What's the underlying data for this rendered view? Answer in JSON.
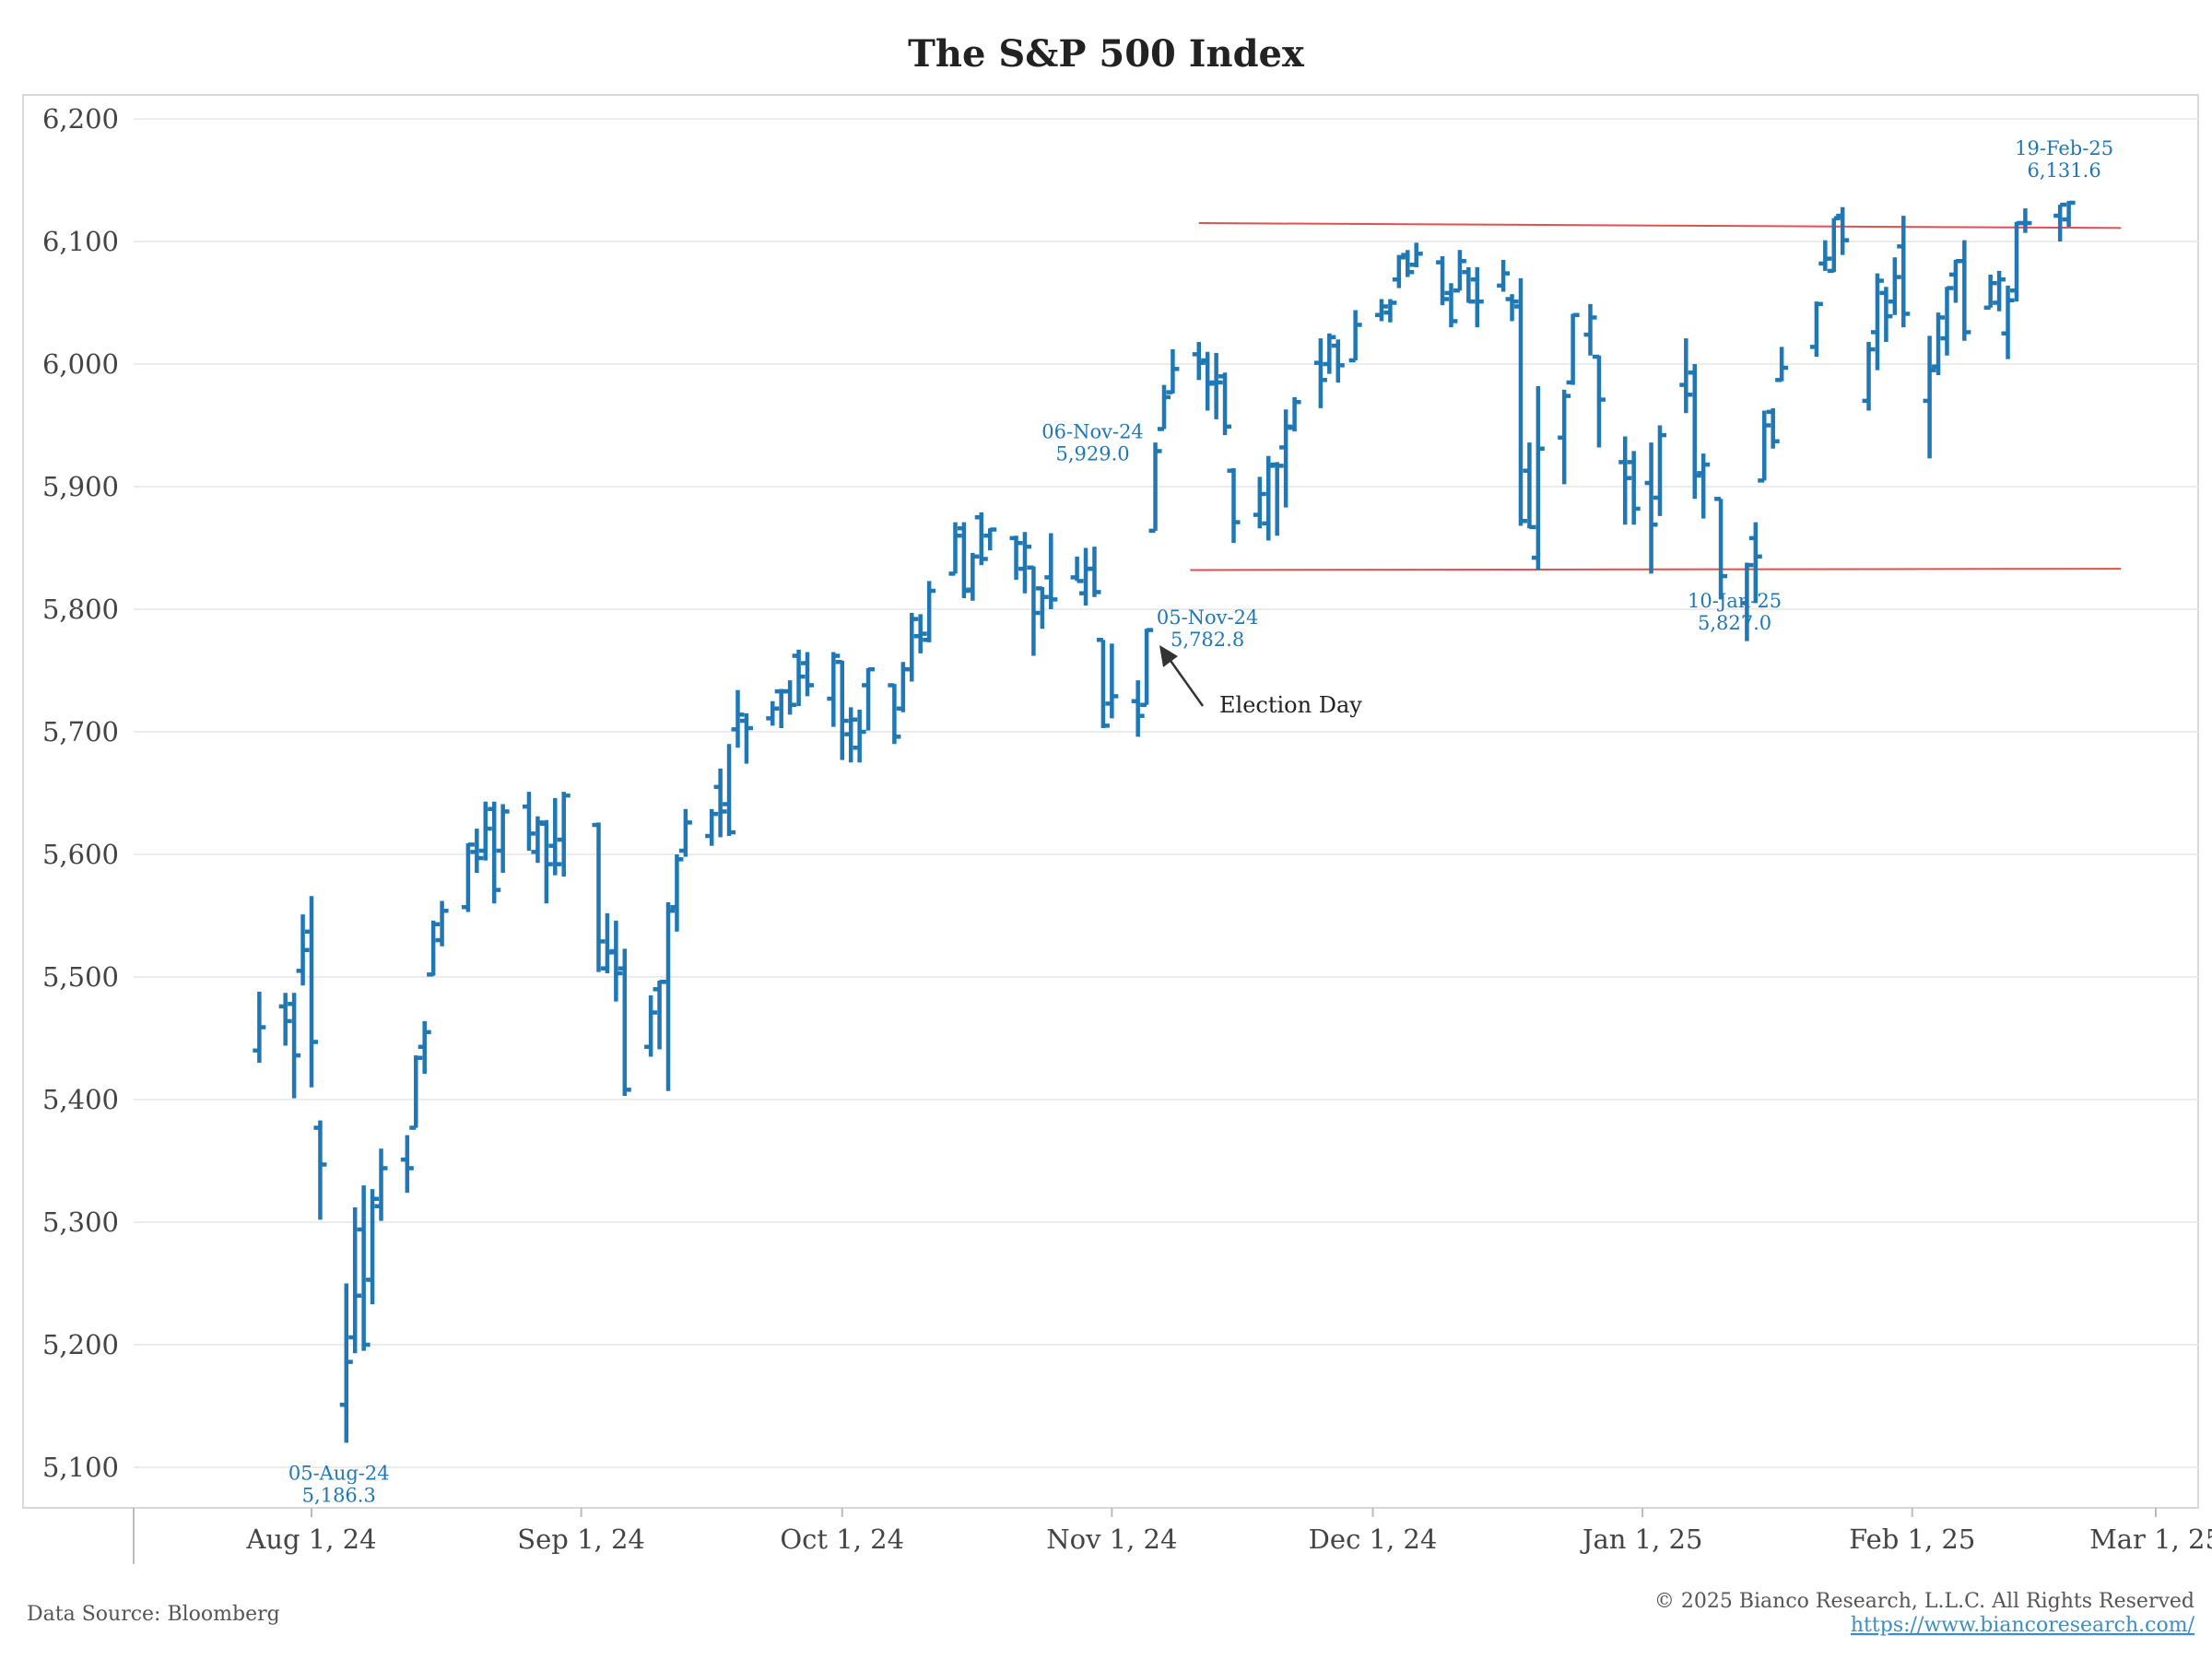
{
  "chart_data": {
    "type": "ohlc",
    "title": "The S&P 500 Index",
    "xlabel": "",
    "ylabel": "",
    "ylim": [
      5100,
      6200
    ],
    "yticks": [
      "5,100",
      "5,200",
      "5,300",
      "5,400",
      "5,500",
      "5,600",
      "5,700",
      "5,800",
      "5,900",
      "6,000",
      "6,100",
      "6,200"
    ],
    "ytick_values": [
      5100,
      5200,
      5300,
      5400,
      5500,
      5600,
      5700,
      5800,
      5900,
      6000,
      6100,
      6200
    ],
    "xlim": [
      "2024-07-22",
      "2025-03-04"
    ],
    "xticks": [
      {
        "date": "2024-08-01",
        "label": "Aug 1, 24"
      },
      {
        "date": "2024-09-01",
        "label": "Sep 1, 24"
      },
      {
        "date": "2024-10-01",
        "label": "Oct 1, 24"
      },
      {
        "date": "2024-11-01",
        "label": "Nov 1, 24"
      },
      {
        "date": "2024-12-01",
        "label": "Dec 1, 24"
      },
      {
        "date": "2025-01-01",
        "label": "Jan 1, 25"
      },
      {
        "date": "2025-02-01",
        "label": "Feb 1, 25"
      },
      {
        "date": "2025-03-01",
        "label": "Mar 1, 25"
      }
    ],
    "grid": "horizontal",
    "series_color": "#1f77b4",
    "trendline_color": "#e05050",
    "columns": [
      "date",
      "open",
      "high",
      "low",
      "close"
    ],
    "bars": [
      [
        "2024-07-26",
        5440,
        5488,
        5430,
        5459
      ],
      [
        "2024-07-29",
        5476,
        5487,
        5444,
        5464
      ],
      [
        "2024-07-30",
        5478,
        5487,
        5401,
        5436
      ],
      [
        "2024-07-31",
        5505,
        5551,
        5493,
        5522
      ],
      [
        "2024-08-01",
        5537,
        5566,
        5410,
        5447
      ],
      [
        "2024-08-02",
        5377,
        5383,
        5302,
        5347
      ],
      [
        "2024-08-05",
        5151,
        5250,
        5120,
        5186
      ],
      [
        "2024-08-06",
        5206,
        5312,
        5193,
        5240
      ],
      [
        "2024-08-07",
        5294,
        5330,
        5195,
        5200
      ],
      [
        "2024-08-08",
        5253,
        5327,
        5233,
        5319
      ],
      [
        "2024-08-09",
        5313,
        5360,
        5301,
        5344
      ],
      [
        "2024-08-12",
        5351,
        5371,
        5324,
        5344
      ],
      [
        "2024-08-13",
        5377,
        5436,
        5377,
        5434
      ],
      [
        "2024-08-14",
        5443,
        5464,
        5421,
        5455
      ],
      [
        "2024-08-15",
        5502,
        5546,
        5501,
        5543
      ],
      [
        "2024-08-16",
        5530,
        5562,
        5525,
        5554
      ],
      [
        "2024-08-19",
        5557,
        5609,
        5553,
        5608
      ],
      [
        "2024-08-20",
        5602,
        5621,
        5585,
        5597
      ],
      [
        "2024-08-21",
        5603,
        5643,
        5595,
        5621
      ],
      [
        "2024-08-22",
        5637,
        5643,
        5560,
        5571
      ],
      [
        "2024-08-23",
        5603,
        5641,
        5585,
        5635
      ],
      [
        "2024-08-26",
        5639,
        5651,
        5603,
        5617
      ],
      [
        "2024-08-27",
        5602,
        5631,
        5593,
        5626
      ],
      [
        "2024-08-28",
        5625,
        5628,
        5560,
        5592
      ],
      [
        "2024-08-29",
        5607,
        5646,
        5583,
        5592
      ],
      [
        "2024-08-30",
        5612,
        5651,
        5582,
        5648
      ],
      [
        "2024-09-03",
        5624,
        5626,
        5504,
        5529
      ],
      [
        "2024-09-04",
        5507,
        5552,
        5503,
        5520
      ],
      [
        "2024-09-05",
        5521,
        5546,
        5480,
        5503
      ],
      [
        "2024-09-06",
        5507,
        5523,
        5403,
        5408
      ],
      [
        "2024-09-09",
        5443,
        5485,
        5435,
        5471
      ],
      [
        "2024-09-10",
        5490,
        5497,
        5441,
        5496
      ],
      [
        "2024-09-11",
        5496,
        5561,
        5407,
        5554
      ],
      [
        "2024-09-12",
        5557,
        5600,
        5537,
        5596
      ],
      [
        "2024-09-13",
        5603,
        5637,
        5598,
        5626
      ],
      [
        "2024-09-16",
        5615,
        5637,
        5607,
        5633
      ],
      [
        "2024-09-17",
        5655,
        5670,
        5614,
        5635
      ],
      [
        "2024-09-18",
        5641,
        5690,
        5615,
        5618
      ],
      [
        "2024-09-19",
        5702,
        5734,
        5687,
        5714
      ],
      [
        "2024-09-20",
        5709,
        5715,
        5674,
        5703
      ],
      [
        "2024-09-23",
        5711,
        5725,
        5705,
        5719
      ],
      [
        "2024-09-24",
        5733,
        5735,
        5703,
        5733
      ],
      [
        "2024-09-25",
        5733,
        5742,
        5714,
        5722
      ],
      [
        "2024-09-26",
        5762,
        5767,
        5721,
        5745
      ],
      [
        "2024-09-27",
        5756,
        5765,
        5729,
        5738
      ],
      [
        "2024-09-30",
        5727,
        5765,
        5704,
        5762
      ],
      [
        "2024-10-01",
        5757,
        5758,
        5677,
        5709
      ],
      [
        "2024-10-02",
        5698,
        5720,
        5675,
        5710
      ],
      [
        "2024-10-03",
        5687,
        5718,
        5675,
        5700
      ],
      [
        "2024-10-04",
        5738,
        5752,
        5701,
        5751
      ],
      [
        "2024-10-07",
        5738,
        5739,
        5690,
        5696
      ],
      [
        "2024-10-08",
        5719,
        5757,
        5716,
        5751
      ],
      [
        "2024-10-09",
        5751,
        5797,
        5741,
        5792
      ],
      [
        "2024-10-10",
        5778,
        5796,
        5764,
        5780
      ],
      [
        "2024-10-11",
        5775,
        5823,
        5773,
        5815
      ],
      [
        "2024-10-14",
        5829,
        5871,
        5829,
        5860
      ],
      [
        "2024-10-15",
        5866,
        5871,
        5809,
        5815
      ],
      [
        "2024-10-16",
        5816,
        5846,
        5807,
        5843
      ],
      [
        "2024-10-17",
        5875,
        5879,
        5836,
        5841
      ],
      [
        "2024-10-18",
        5860,
        5866,
        5848,
        5865
      ],
      [
        "2024-10-21",
        5858,
        5860,
        5824,
        5854
      ],
      [
        "2024-10-22",
        5833,
        5863,
        5813,
        5851
      ],
      [
        "2024-10-23",
        5834,
        5835,
        5762,
        5797
      ],
      [
        "2024-10-24",
        5817,
        5818,
        5784,
        5810
      ],
      [
        "2024-10-25",
        5826,
        5862,
        5800,
        5808
      ],
      [
        "2024-10-28",
        5826,
        5843,
        5823,
        5823
      ],
      [
        "2024-10-29",
        5813,
        5850,
        5803,
        5833
      ],
      [
        "2024-10-30",
        5833,
        5851,
        5810,
        5814
      ],
      [
        "2024-10-31",
        5775,
        5775,
        5703,
        5705
      ],
      [
        "2024-11-01",
        5723,
        5772,
        5711,
        5729
      ],
      [
        "2024-11-04",
        5725,
        5742,
        5696,
        5713
      ],
      [
        "2024-11-05",
        5722,
        5784,
        5722,
        5783
      ],
      [
        "2024-11-06",
        5864,
        5936,
        5864,
        5929
      ],
      [
        "2024-11-07",
        5947,
        5983,
        5947,
        5973
      ],
      [
        "2024-11-08",
        5977,
        6012,
        5976,
        5996
      ],
      [
        "2024-11-11",
        6008,
        6018,
        5987,
        6001
      ],
      [
        "2024-11-12",
        6003,
        6010,
        5962,
        5984
      ],
      [
        "2024-11-13",
        5985,
        6009,
        5955,
        5985
      ],
      [
        "2024-11-14",
        5990,
        5993,
        5942,
        5949
      ],
      [
        "2024-11-15",
        5913,
        5915,
        5854,
        5871
      ],
      [
        "2024-11-18",
        5877,
        5908,
        5866,
        5894
      ],
      [
        "2024-11-19",
        5870,
        5925,
        5856,
        5917
      ],
      [
        "2024-11-20",
        5918,
        5920,
        5860,
        5917
      ],
      [
        "2024-11-21",
        5932,
        5963,
        5883,
        5949
      ],
      [
        "2024-11-22",
        5948,
        5973,
        5945,
        5969
      ],
      [
        "2024-11-25",
        6001,
        6021,
        5964,
        5987
      ],
      [
        "2024-11-26",
        6000,
        6025,
        5992,
        6022
      ],
      [
        "2024-11-27",
        6015,
        6020,
        5985,
        5999
      ],
      [
        "2024-11-29",
        6003,
        6044,
        6003,
        6032
      ],
      [
        "2024-12-02",
        6040,
        6053,
        6035,
        6047
      ],
      [
        "2024-12-03",
        6042,
        6053,
        6034,
        6050
      ],
      [
        "2024-12-04",
        6069,
        6089,
        6062,
        6087
      ],
      [
        "2024-12-05",
        6089,
        6093,
        6071,
        6075
      ],
      [
        "2024-12-06",
        6081,
        6099,
        6079,
        6090
      ],
      [
        "2024-12-09",
        6083,
        6088,
        6048,
        6053
      ],
      [
        "2024-12-10",
        6058,
        6066,
        6030,
        6035
      ],
      [
        "2024-12-11",
        6060,
        6093,
        6060,
        6084
      ],
      [
        "2024-12-12",
        6075,
        6079,
        6050,
        6051
      ],
      [
        "2024-12-13",
        6069,
        6079,
        6030,
        6051
      ],
      [
        "2024-12-16",
        6064,
        6085,
        6059,
        6074
      ],
      [
        "2024-12-17",
        6053,
        6057,
        6035,
        6051
      ],
      [
        "2024-12-18",
        6047,
        6070,
        5868,
        5872
      ],
      [
        "2024-12-19",
        5913,
        5936,
        5866,
        5867
      ],
      [
        "2024-12-20",
        5842,
        5982,
        5832,
        5931
      ],
      [
        "2024-12-23",
        5940,
        5979,
        5902,
        5974
      ],
      [
        "2024-12-24",
        5985,
        6041,
        5983,
        6040
      ],
      [
        "2024-12-26",
        6024,
        6049,
        6007,
        6038
      ],
      [
        "2024-12-27",
        6006,
        6007,
        5932,
        5971
      ],
      [
        "2024-12-30",
        5920,
        5941,
        5869,
        5907
      ],
      [
        "2024-12-31",
        5920,
        5929,
        5869,
        5882
      ],
      [
        "2025-01-02",
        5903,
        5936,
        5829,
        5869
      ],
      [
        "2025-01-03",
        5891,
        5950,
        5876,
        5942
      ],
      [
        "2025-01-06",
        5983,
        6021,
        5960,
        5975
      ],
      [
        "2025-01-07",
        5993,
        6000,
        5890,
        5909
      ],
      [
        "2025-01-08",
        5911,
        5927,
        5874,
        5918
      ],
      [
        "2025-01-10",
        5890,
        5890,
        5808,
        5827
      ],
      [
        "2025-01-13",
        5805,
        5838,
        5774,
        5836
      ],
      [
        "2025-01-14",
        5858,
        5871,
        5805,
        5843
      ],
      [
        "2025-01-15",
        5905,
        5962,
        5905,
        5950
      ],
      [
        "2025-01-16",
        5961,
        5964,
        5931,
        5937
      ],
      [
        "2025-01-17",
        5987,
        6014,
        5986,
        5997
      ],
      [
        "2025-01-21",
        6014,
        6051,
        6006,
        6049
      ],
      [
        "2025-01-22",
        6082,
        6101,
        6076,
        6086
      ],
      [
        "2025-01-23",
        6076,
        6119,
        6075,
        6119
      ],
      [
        "2025-01-24",
        6121,
        6128,
        6089,
        6101
      ],
      [
        "2025-01-27",
        5970,
        6018,
        5962,
        6012
      ],
      [
        "2025-01-28",
        6026,
        6074,
        5995,
        6068
      ],
      [
        "2025-01-29",
        6058,
        6063,
        6018,
        6039
      ],
      [
        "2025-01-30",
        6051,
        6087,
        6040,
        6071
      ],
      [
        "2025-01-31",
        6096,
        6121,
        6030,
        6041
      ],
      [
        "2025-02-03",
        5970,
        6023,
        5923,
        5995
      ],
      [
        "2025-02-04",
        5998,
        6042,
        5991,
        6038
      ],
      [
        "2025-02-05",
        6021,
        6063,
        6007,
        6062
      ],
      [
        "2025-02-06",
        6073,
        6085,
        6050,
        6084
      ],
      [
        "2025-02-07",
        6084,
        6101,
        6019,
        6026
      ],
      [
        "2025-02-10",
        6046,
        6073,
        6046,
        6066
      ],
      [
        "2025-02-11",
        6050,
        6076,
        6043,
        6069
      ],
      [
        "2025-02-12",
        6025,
        6064,
        6004,
        6052
      ],
      [
        "2025-02-13",
        6060,
        6116,
        6051,
        6115
      ],
      [
        "2025-02-14",
        6115,
        6127,
        6107,
        6115
      ],
      [
        "2025-02-18",
        6121,
        6130,
        6100,
        6130
      ],
      [
        "2025-02-19",
        6118,
        6133,
        6112,
        6131.6
      ]
    ],
    "trendlines": [
      {
        "name": "resistance",
        "from": [
          "2024-11-11",
          6115
        ],
        "to": [
          "2025-02-25",
          6111
        ]
      },
      {
        "name": "support",
        "from": [
          "2024-11-10",
          5832
        ],
        "to": [
          "2025-02-25",
          5833
        ]
      }
    ],
    "annotations": [
      {
        "date": "2024-08-05",
        "label": "05-Aug-24",
        "value": "5,186.3",
        "position": "below"
      },
      {
        "date": "2024-11-06",
        "label": "06-Nov-24",
        "value": "5,929.0",
        "position": "left"
      },
      {
        "date": "2024-11-05",
        "label": "05-Nov-24",
        "value": "5,782.8",
        "position": "right"
      },
      {
        "date": "2025-01-10",
        "label": "10-Jan-25",
        "value": "5,827.0",
        "position": "below"
      },
      {
        "date": "2025-02-19",
        "label": "19-Feb-25",
        "value": "6,131.6",
        "position": "above"
      }
    ],
    "callout": {
      "text": "Election Day",
      "date": "2024-11-05"
    }
  },
  "footer": {
    "source": "Data Source: Bloomberg",
    "copyright": "© 2025 Bianco Research, L.L.C. All Rights Reserved",
    "url": "https://www.biancoresearch.com/"
  }
}
